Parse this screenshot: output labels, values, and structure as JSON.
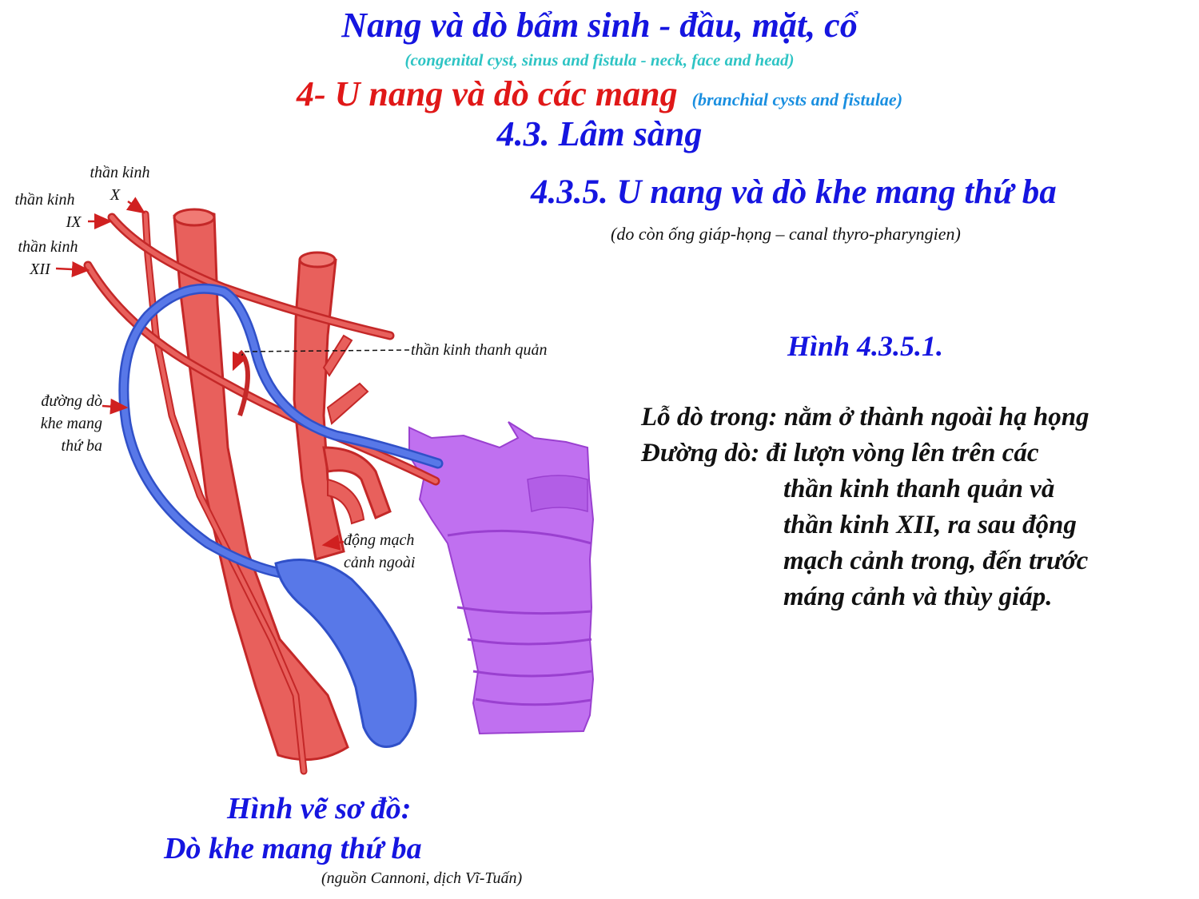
{
  "header": {
    "title": "Nang và dò bẩm sinh - đầu, mặt, cổ",
    "title_en": "(congenital cyst, sinus and fistula - neck, face and head)",
    "section_title": "4- U nang và dò các mang",
    "section_en": "(branchial cysts and fistulae)",
    "subsection_title": "4.3. Lâm sàng",
    "subsubsection_title": "4.3.5. U nang và dò khe mang thứ ba",
    "subsubsection_note": "(do còn ống giáp-họng – canal thyro-pharyngien)"
  },
  "figure": {
    "number": "Hình 4.3.5.1.",
    "lines": [
      "Lỗ dò trong: nằm ở thành ngoài hạ họng",
      "Đường dò: đi lượn vòng lên trên các",
      "thần kinh thanh quản và",
      "thần kinh XII, ra sau động",
      "mạch cảnh trong, đến trước",
      "máng cảnh và thùy giáp."
    ]
  },
  "diagram": {
    "labels": {
      "nerve_x": [
        "thần kinh",
        "X"
      ],
      "nerve_ix": [
        "thần kinh",
        "IX"
      ],
      "nerve_xii": [
        "thần kinh",
        "XII"
      ],
      "laryngeal_nerve": "thần kinh thanh quản",
      "fistula_tract": [
        "đường dò",
        "khe mang",
        "thứ ba"
      ],
      "external_carotid": [
        "động mạch",
        "cảnh ngoài"
      ]
    },
    "colors": {
      "artery": "#e8605c",
      "artery_stroke": "#c42828",
      "fistula": "#5878e8",
      "larynx": "#c070f0",
      "arrow": "#d02020"
    }
  },
  "caption": {
    "line1": "Hình vẽ sơ đồ:",
    "line2": "Dò khe mang thứ ba",
    "credit": "(nguồn  Cannoni, dịch Vĩ-Tuấn)"
  }
}
